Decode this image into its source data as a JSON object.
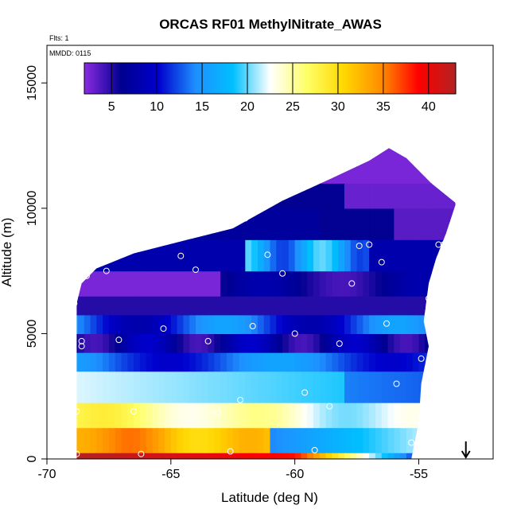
{
  "chart_data": {
    "type": "heatmap",
    "title": "ORCAS RF01 MethylNitrate_AWAS",
    "notes": {
      "flights": "Flts: 1",
      "date": "MMDD: 0115"
    },
    "xlabel": "Latitude (deg N)",
    "ylabel": "Altitude (m)",
    "xlim": [
      -70,
      -52
    ],
    "ylim": [
      0,
      16500
    ],
    "x_ticks": [
      -70,
      -65,
      -60,
      -55
    ],
    "x_tick_labels": [
      "-70",
      "-65",
      "-60",
      "-55"
    ],
    "y_ticks": [
      0,
      5000,
      10000,
      15000
    ],
    "y_tick_labels": [
      "0",
      "5000",
      "10000",
      "15000"
    ],
    "colorbar": {
      "range": [
        2,
        43
      ],
      "ticks": [
        5,
        10,
        15,
        20,
        25,
        30,
        35,
        40
      ],
      "tick_labels": [
        "5",
        "10",
        "15",
        "20",
        "25",
        "30",
        "35",
        "40"
      ],
      "colors": [
        "#8a2be2",
        "#000090",
        "#0000cd",
        "#1e90ff",
        "#00bfff",
        "#ffffff",
        "#ffff66",
        "#ffd700",
        "#ff8c00",
        "#ff0000",
        "#b22222"
      ]
    },
    "domain_outline": [
      [
        -68.8,
        0
      ],
      [
        -68.8,
        6200
      ],
      [
        -68.6,
        7000
      ],
      [
        -68.0,
        7600
      ],
      [
        -66.5,
        8200
      ],
      [
        -64.5,
        8700
      ],
      [
        -62.5,
        9200
      ],
      [
        -60.5,
        10300
      ],
      [
        -58.5,
        11200
      ],
      [
        -57.0,
        11900
      ],
      [
        -56.2,
        12400
      ],
      [
        -55.5,
        12000
      ],
      [
        -54.5,
        11000
      ],
      [
        -53.5,
        10200
      ],
      [
        -53.9,
        9000
      ],
      [
        -54.3,
        8000
      ],
      [
        -54.6,
        7000
      ],
      [
        -54.8,
        5500
      ],
      [
        -54.6,
        4500
      ],
      [
        -54.9,
        3000
      ],
      [
        -55.0,
        1500
      ],
      [
        -55.3,
        0
      ]
    ],
    "arrow_marker": {
      "x": -53.1,
      "y": 700
    },
    "samples": [
      [
        -68.8,
        200
      ],
      [
        -68.8,
        1900
      ],
      [
        -68.6,
        4500
      ],
      [
        -68.6,
        4700
      ],
      [
        -68.9,
        6200
      ],
      [
        -68.4,
        7300
      ],
      [
        -67.6,
        7500
      ],
      [
        -67.1,
        4750
      ],
      [
        -66.5,
        1900
      ],
      [
        -66.2,
        200
      ],
      [
        -65.3,
        5200
      ],
      [
        -64.6,
        8100
      ],
      [
        -64.0,
        7550
      ],
      [
        -63.5,
        4700
      ],
      [
        -63.1,
        1850
      ],
      [
        -62.6,
        300
      ],
      [
        -62.2,
        2350
      ],
      [
        -62.0,
        9600
      ],
      [
        -61.7,
        5300
      ],
      [
        -61.1,
        8150
      ],
      [
        -60.5,
        7400
      ],
      [
        -60.0,
        5000
      ],
      [
        -59.6,
        2650
      ],
      [
        -59.2,
        350
      ],
      [
        -58.6,
        2100
      ],
      [
        -58.2,
        4600
      ],
      [
        -57.7,
        7000
      ],
      [
        -57.4,
        8500
      ],
      [
        -57.0,
        8550
      ],
      [
        -56.5,
        7850
      ],
      [
        -56.3,
        5400
      ],
      [
        -55.9,
        3000
      ],
      [
        -55.3,
        650
      ],
      [
        -55.1,
        1550
      ],
      [
        -54.9,
        4000
      ],
      [
        -54.6,
        6400
      ],
      [
        -54.2,
        8550
      ],
      [
        -54.0,
        8550
      ],
      [
        -53.6,
        10500
      ],
      [
        -53.4,
        10200
      ],
      [
        -56.1,
        12500
      ]
    ],
    "grid": false
  }
}
